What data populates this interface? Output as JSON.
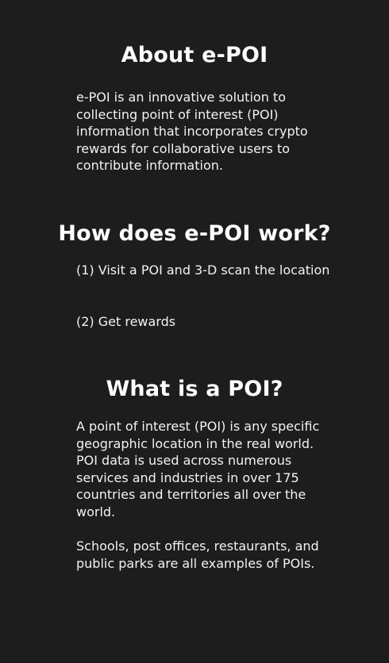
{
  "about": {
    "title": "About e-POI",
    "body": "e-POI is an innovative solution to collecting point of interest (POI) information that incorporates crypto rewards for collaborative users to contribute information."
  },
  "how": {
    "title": "How does e-POI work?",
    "steps": [
      "(1) Visit a POI and 3-D scan the location",
      "(2) Get rewards"
    ]
  },
  "what": {
    "title": "What is a POI?",
    "paragraphs": [
      "A point of interest (POI) is any specific geographic location in the real world. POI data is used across numerous services and industries in over 175 countries and territories all over the world.",
      "Schools, post offices, restaurants, and public parks are all examples of POIs."
    ]
  }
}
